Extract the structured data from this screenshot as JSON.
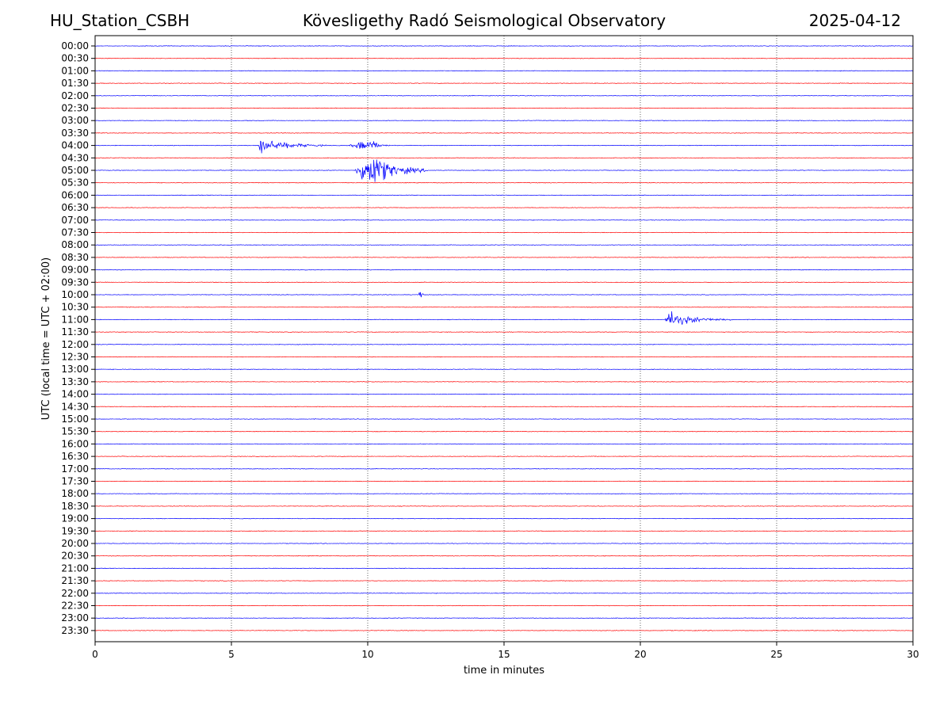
{
  "header": {
    "station": "HU_Station_CSBH",
    "title": "Kövesligethy Radó Seismological Observatory",
    "date": "2025-04-12"
  },
  "chart_data": {
    "type": "line",
    "title": "Kövesligethy Radó Seismological Observatory",
    "xlabel": "time in minutes",
    "ylabel": "UTC (local time = UTC + 02:00)",
    "xlim": [
      0,
      30
    ],
    "xticks": [
      0,
      5,
      10,
      15,
      20,
      25,
      30
    ],
    "grid": "vertical dotted lines at x ticks",
    "trace_colors": [
      "#0000ff",
      "#ff0000"
    ],
    "rows": [
      "00:00",
      "00:30",
      "01:00",
      "01:30",
      "02:00",
      "02:30",
      "03:00",
      "03:30",
      "04:00",
      "04:30",
      "05:00",
      "05:30",
      "06:00",
      "06:30",
      "07:00",
      "07:30",
      "08:00",
      "08:30",
      "09:00",
      "09:30",
      "10:00",
      "10:30",
      "11:00",
      "11:30",
      "12:00",
      "12:30",
      "13:00",
      "13:30",
      "14:00",
      "14:30",
      "15:00",
      "15:30",
      "16:00",
      "16:30",
      "17:00",
      "17:30",
      "18:00",
      "18:30",
      "19:00",
      "19:30",
      "20:00",
      "20:30",
      "21:00",
      "21:30",
      "22:00",
      "22:30",
      "23:00",
      "23:30"
    ],
    "events": [
      {
        "row": "04:00",
        "start": 6.0,
        "peak": 6.05,
        "end": 8.5,
        "amplitude": 1.0
      },
      {
        "row": "04:00",
        "start": 9.3,
        "peak": 10.05,
        "end": 10.8,
        "amplitude": 0.9
      },
      {
        "row": "05:00",
        "start": 9.5,
        "peak": 10.05,
        "end": 12.2,
        "amplitude": 2.3
      },
      {
        "row": "10:00",
        "start": 11.85,
        "peak": 11.95,
        "end": 12.1,
        "amplitude": 0.7
      },
      {
        "row": "11:00",
        "start": 20.9,
        "peak": 21.0,
        "end": 23.4,
        "amplitude": 1.0
      }
    ]
  }
}
